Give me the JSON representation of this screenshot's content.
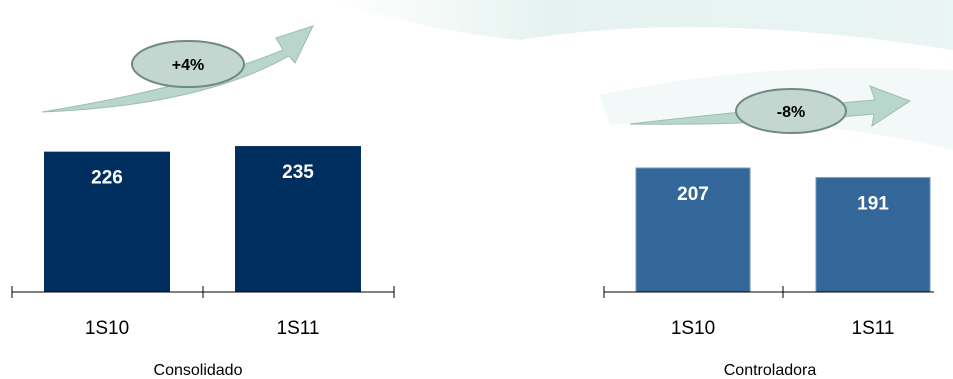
{
  "colors": {
    "consolidado_bar": "#002f5f",
    "controladora_bar": "#336699",
    "arrow": "#b9d6cc",
    "badge_fill": "#c4d6d0",
    "axis": "#000000",
    "bar_text": "#ffffff"
  },
  "chart_data": [
    {
      "type": "bar",
      "categories": [
        "1S10",
        "1S11"
      ],
      "values": [
        226,
        235
      ],
      "data_labels": [
        "226",
        "235"
      ],
      "title": "Consolidado",
      "change_badge": "+4%",
      "ylim": [
        0,
        260
      ],
      "grid": false
    },
    {
      "type": "bar",
      "categories": [
        "1S10",
        "1S11"
      ],
      "values": [
        207,
        191
      ],
      "data_labels": [
        "207",
        "191"
      ],
      "title": "Controladora",
      "change_badge": "-8%",
      "ylim": [
        0,
        260
      ],
      "grid": false
    }
  ]
}
